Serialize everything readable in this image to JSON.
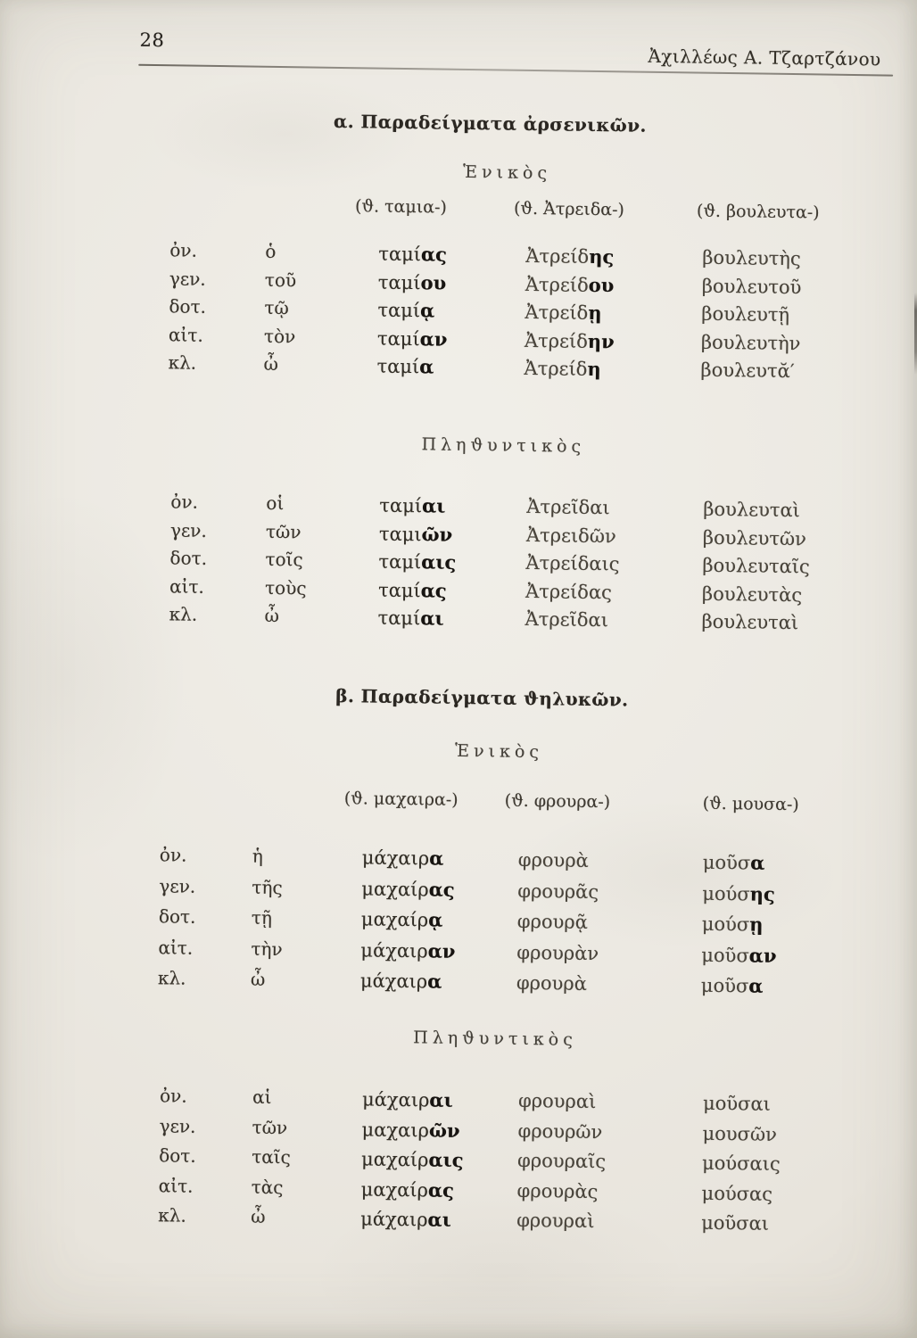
{
  "page": {
    "number": "28",
    "running_header": "Ἀχιλλέως Α. Τζαρτζάνου"
  },
  "colors": {
    "paper": "#ebe8e1",
    "ink": "#38342d"
  },
  "sections": [
    {
      "title": "α. Παραδείγματα ἀρσενικῶν.",
      "tables": [
        {
          "heading": "Ἑνικὸς",
          "stems": [
            "(ϑ. ταμια-)",
            "(ϑ. Ἀτρειδα-)",
            "(ϑ. βουλευτα-)"
          ],
          "rows": [
            {
              "case": "ὀν.",
              "article": "ὁ",
              "forms": [
                [
                  "ταμί",
                  "ας"
                ],
                [
                  "Ἀτρείδ",
                  "ης"
                ],
                "βουλευτὴς"
              ]
            },
            {
              "case": "γεν.",
              "article": "τοῦ",
              "forms": [
                [
                  "ταμί",
                  "ου"
                ],
                [
                  "Ἀτρείδ",
                  "ου"
                ],
                "βουλευτοῦ"
              ]
            },
            {
              "case": "δοτ.",
              "article": "τῷ",
              "forms": [
                [
                  "ταμί",
                  "ᾳ"
                ],
                [
                  "Ἀτρείδ",
                  "ῃ"
                ],
                "βουλευτῇ"
              ]
            },
            {
              "case": "αἰτ.",
              "article": "τὸν",
              "forms": [
                [
                  "ταμί",
                  "αν"
                ],
                [
                  "Ἀτρείδ",
                  "ην"
                ],
                "βουλευτὴν"
              ]
            },
            {
              "case": "κλ.",
              "article": "ὦ",
              "forms": [
                [
                  "ταμί",
                  "α"
                ],
                [
                  "Ἀτρείδ",
                  "η"
                ],
                "βουλευτᾰ′"
              ]
            }
          ]
        },
        {
          "heading": "Πληϑυντικὸς",
          "rows": [
            {
              "case": "ὀν.",
              "article": "οἱ",
              "forms": [
                [
                  "ταμί",
                  "αι"
                ],
                "Ἀτρεῖδαι",
                "βουλευταὶ"
              ]
            },
            {
              "case": "γεν.",
              "article": "τῶν",
              "forms": [
                [
                  "ταμι",
                  "ῶν"
                ],
                "Ἀτρειδῶν",
                "βουλευτῶν"
              ]
            },
            {
              "case": "δοτ.",
              "article": "τοῖς",
              "forms": [
                [
                  "ταμί",
                  "αις"
                ],
                "Ἀτρείδαις",
                "βουλευταῖς"
              ]
            },
            {
              "case": "αἰτ.",
              "article": "τοὺς",
              "forms": [
                [
                  "ταμί",
                  "ας"
                ],
                "Ἀτρείδας",
                "βουλευτὰς"
              ]
            },
            {
              "case": "κλ.",
              "article": "ὦ",
              "forms": [
                [
                  "ταμί",
                  "αι"
                ],
                "Ἀτρεῖδαι",
                "βουλευταὶ"
              ]
            }
          ]
        }
      ]
    },
    {
      "title": "β. Παραδείγματα ϑηλυκῶν.",
      "tables": [
        {
          "heading": "Ἑνικὸς",
          "stems": [
            "(ϑ. μαχαιρα-)",
            "(ϑ. φρουρα-)",
            "(ϑ. μουσα-)"
          ],
          "rows": [
            {
              "case": "ὀν.",
              "article": "ἡ",
              "forms": [
                [
                  "μάχαιρ",
                  "α"
                ],
                "φρουρὰ",
                [
                  "μοῦσ",
                  "α"
                ]
              ]
            },
            {
              "case": "γεν.",
              "article": "τῆς",
              "forms": [
                [
                  "μαχαίρ",
                  "ας"
                ],
                "φρουρᾶς",
                [
                  "μούσ",
                  "ης"
                ]
              ]
            },
            {
              "case": "δοτ.",
              "article": "τῇ",
              "forms": [
                [
                  "μαχαίρ",
                  "ᾳ"
                ],
                "φρουρᾷ",
                [
                  "μούσ",
                  "ῃ"
                ]
              ]
            },
            {
              "case": "αἰτ.",
              "article": "τὴν",
              "forms": [
                [
                  "μάχαιρ",
                  "αν"
                ],
                "φρουρὰν",
                [
                  "μοῦσ",
                  "αν"
                ]
              ]
            },
            {
              "case": "κλ.",
              "article": "ὦ",
              "forms": [
                [
                  "μάχαιρ",
                  "α"
                ],
                "φρουρὰ",
                [
                  "μοῦσ",
                  "α"
                ]
              ]
            }
          ]
        },
        {
          "heading": "Πληϑυντικὸς",
          "rows": [
            {
              "case": "ὀν.",
              "article": "αἱ",
              "forms": [
                [
                  "μάχαιρ",
                  "αι"
                ],
                "φρουραὶ",
                "μοῦσαι"
              ]
            },
            {
              "case": "γεν.",
              "article": "τῶν",
              "forms": [
                [
                  "μαχαιρ",
                  "ῶν"
                ],
                "φρουρῶν",
                "μουσῶν"
              ]
            },
            {
              "case": "δοτ.",
              "article": "ταῖς",
              "forms": [
                [
                  "μαχαίρ",
                  "αις"
                ],
                "φρουραῖς",
                "μούσαις"
              ]
            },
            {
              "case": "αἰτ.",
              "article": "τὰς",
              "forms": [
                [
                  "μαχαίρ",
                  "ας"
                ],
                "φρουρὰς",
                "μούσας"
              ]
            },
            {
              "case": "κλ.",
              "article": "ὦ",
              "forms": [
                [
                  "μάχαιρ",
                  "αι"
                ],
                "φρουραὶ",
                "μοῦσαι"
              ]
            }
          ]
        }
      ]
    }
  ]
}
